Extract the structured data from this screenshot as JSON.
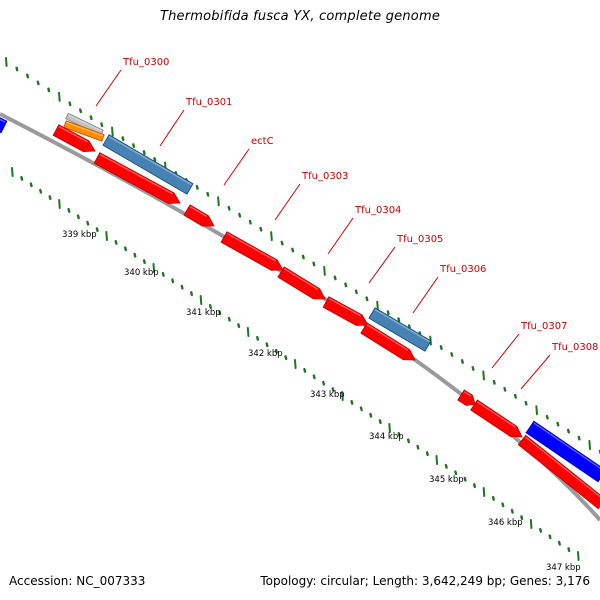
{
  "title": "Thermobifida fusca YX, complete genome",
  "footer": {
    "accession": "Accession: NC_007333",
    "topology": "Topology: circular; Length: 3,642,249 bp; Genes: 3,176"
  },
  "genes": [
    {
      "label": "Tfu_0300",
      "color": "#d00000"
    },
    {
      "label": "Tfu_0301",
      "color": "#d00000"
    },
    {
      "label": "ectC",
      "color": "#d00000"
    },
    {
      "label": "Tfu_0303",
      "color": "#d00000"
    },
    {
      "label": "Tfu_0304",
      "color": "#d00000"
    },
    {
      "label": "Tfu_0305",
      "color": "#d00000"
    },
    {
      "label": "Tfu_0306",
      "color": "#d00000"
    },
    {
      "label": "Tfu_0307",
      "color": "#d00000"
    },
    {
      "label": "Tfu_0308",
      "color": "#d00000"
    }
  ],
  "ticks": [
    "339 kbp",
    "340 kbp",
    "341 kbp",
    "342 kbp",
    "343 kbp",
    "344 kbp",
    "345 kbp",
    "346 kbp",
    "347 kbp"
  ],
  "colors": {
    "cds_forward": "#ff0000",
    "cds_blue": "#0000ff",
    "cds_steelblue": "#4682b4",
    "cds_orange": "#ff8c00",
    "cds_grey": "#c0c0c0",
    "backbone": "#808080",
    "dotted_track": "#1a7a1a",
    "label": "#cc0000"
  }
}
